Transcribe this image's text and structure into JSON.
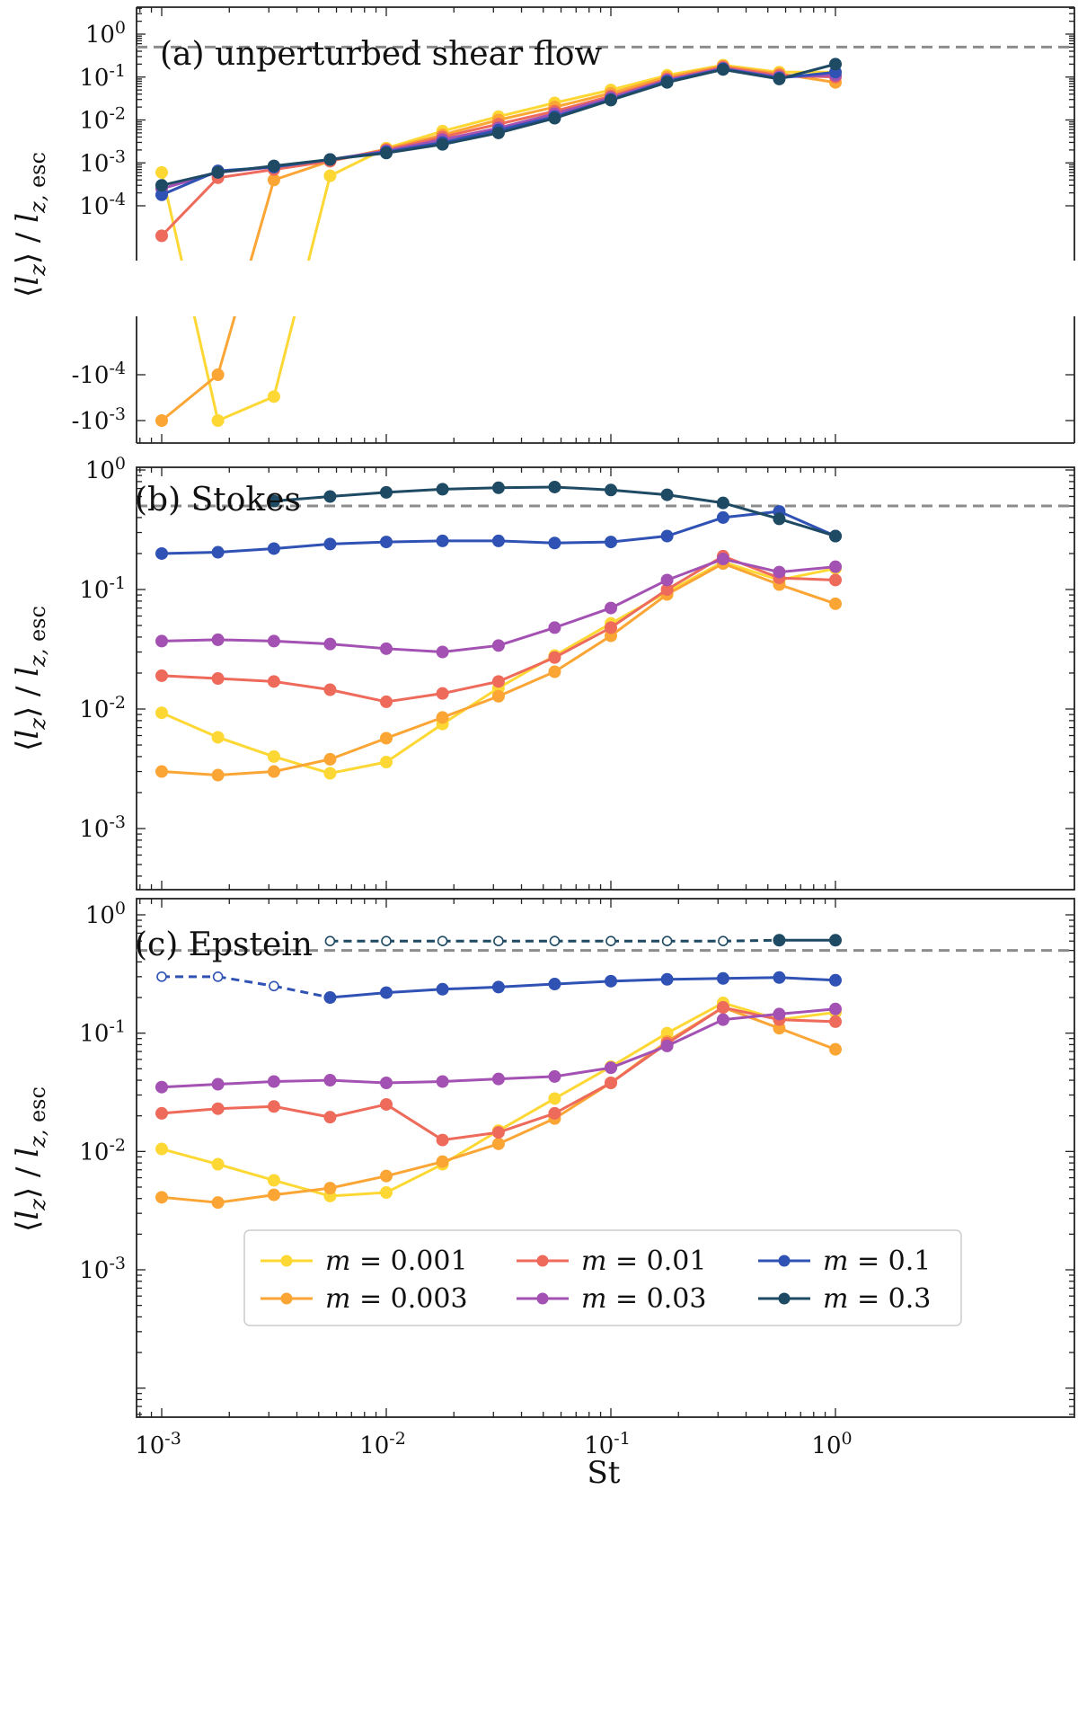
{
  "figure": {
    "xlabel": "St",
    "ylabel": "⟨lz⟩ / lz, esc",
    "legend_placement": "lower-center of panel (c)"
  },
  "series_styles": [
    {
      "key": "m0001",
      "name": "m = 0.001",
      "color": "#FDD835"
    },
    {
      "key": "m0003",
      "name": "m = 0.003",
      "color": "#FBA535"
    },
    {
      "key": "m001",
      "name": "m = 0.01",
      "color": "#EE6A5A"
    },
    {
      "key": "m003",
      "name": "m = 0.03",
      "color": "#A351B2"
    },
    {
      "key": "m01",
      "name": "m = 0.1",
      "color": "#2F52B4"
    },
    {
      "key": "m03",
      "name": "m = 0.3",
      "color": "#1E4A64"
    }
  ],
  "chart_data": [
    {
      "type": "line",
      "panel": "a",
      "title": "(a) unperturbed shear flow",
      "xscale": "log",
      "yscale": "symlog (broken axis)",
      "xlim": [
        0.001,
        1
      ],
      "x": [
        0.001,
        0.00178,
        0.00316,
        0.00562,
        0.01,
        0.0178,
        0.0316,
        0.0562,
        0.1,
        0.178,
        0.316,
        0.562,
        1
      ],
      "y_ticks_upper": [
        "10^0",
        "10^-1",
        "10^-2",
        "10^-3",
        "10^-4"
      ],
      "y_ticks_lower": [
        "-10^-4",
        "-10^-3"
      ],
      "reference_line": 0.5,
      "series": [
        {
          "key": "m0001",
          "values": [
            0.0006,
            -0.001,
            -0.0003,
            0.0005,
            0.0022,
            0.0055,
            0.012,
            0.025,
            0.05,
            0.11,
            0.19,
            0.13,
            0.13
          ]
        },
        {
          "key": "m0003",
          "values": [
            -0.001,
            -0.0001,
            0.0004,
            0.0011,
            0.0021,
            0.0045,
            0.01,
            0.02,
            0.042,
            0.1,
            0.18,
            0.12,
            0.075
          ]
        },
        {
          "key": "m001",
          "values": [
            2e-05,
            0.00045,
            0.0007,
            0.0011,
            0.002,
            0.004,
            0.008,
            0.016,
            0.036,
            0.09,
            0.17,
            0.11,
            0.1
          ]
        },
        {
          "key": "m003",
          "values": [
            0.00025,
            0.0006,
            0.0008,
            0.0012,
            0.0019,
            0.0035,
            0.0065,
            0.014,
            0.033,
            0.085,
            0.16,
            0.1,
            0.11
          ]
        },
        {
          "key": "m01",
          "values": [
            0.00018,
            0.00065,
            0.0008,
            0.0012,
            0.0018,
            0.003,
            0.0058,
            0.012,
            0.03,
            0.08,
            0.155,
            0.095,
            0.13
          ]
        },
        {
          "key": "m03",
          "values": [
            0.0003,
            0.0006,
            0.00085,
            0.0012,
            0.0017,
            0.0027,
            0.005,
            0.011,
            0.029,
            0.075,
            0.15,
            0.09,
            0.2
          ]
        }
      ]
    },
    {
      "type": "line",
      "panel": "b",
      "title": "(b) Stokes",
      "xscale": "log",
      "yscale": "log",
      "xlim": [
        0.001,
        1
      ],
      "x": [
        0.001,
        0.00178,
        0.00316,
        0.00562,
        0.01,
        0.0178,
        0.0316,
        0.0562,
        0.1,
        0.178,
        0.316,
        0.562,
        1
      ],
      "y_ticks": [
        "10^0",
        "10^-1",
        "10^-2",
        "10^-3"
      ],
      "reference_line": 0.5,
      "series": [
        {
          "key": "m0001",
          "values": [
            0.0093,
            0.0058,
            0.004,
            0.0029,
            0.0036,
            0.0075,
            0.015,
            0.028,
            0.052,
            0.095,
            0.17,
            0.12,
            0.15
          ]
        },
        {
          "key": "m0003",
          "values": [
            0.003,
            0.0028,
            0.003,
            0.0038,
            0.0057,
            0.0085,
            0.0128,
            0.0205,
            0.041,
            0.091,
            0.165,
            0.11,
            0.076
          ]
        },
        {
          "key": "m001",
          "values": [
            0.019,
            0.018,
            0.017,
            0.0145,
            0.0115,
            0.0135,
            0.017,
            0.027,
            0.048,
            0.1,
            0.19,
            0.125,
            0.12
          ]
        },
        {
          "key": "m003",
          "values": [
            0.037,
            0.038,
            0.037,
            0.035,
            0.032,
            0.03,
            0.034,
            0.048,
            0.07,
            0.12,
            0.18,
            0.14,
            0.155
          ]
        },
        {
          "key": "m01",
          "values": [
            0.2,
            0.205,
            0.22,
            0.24,
            0.25,
            0.255,
            0.255,
            0.245,
            0.25,
            0.28,
            0.4,
            0.45,
            0.28
          ]
        },
        {
          "key": "m03",
          "values": [
            null,
            null,
            0.55,
            0.6,
            0.65,
            0.69,
            0.71,
            0.72,
            0.68,
            0.62,
            0.53,
            0.39,
            0.28
          ]
        }
      ]
    },
    {
      "type": "line",
      "panel": "c",
      "title": "(c) Epstein",
      "xscale": "log",
      "yscale": "log",
      "xlim": [
        0.001,
        1
      ],
      "x": [
        0.001,
        0.00178,
        0.00316,
        0.00562,
        0.01,
        0.0178,
        0.0316,
        0.0562,
        0.1,
        0.178,
        0.316,
        0.562,
        1
      ],
      "y_ticks": [
        "10^0",
        "10^-1",
        "10^-2",
        "10^-3"
      ],
      "reference_line": 0.5,
      "series": [
        {
          "key": "m0001",
          "values": [
            0.0105,
            0.0078,
            0.0057,
            0.0042,
            0.0045,
            0.0078,
            0.015,
            0.028,
            0.052,
            0.1,
            0.18,
            0.13,
            0.15
          ]
        },
        {
          "key": "m0003",
          "values": [
            0.0041,
            0.0037,
            0.0043,
            0.0049,
            0.0062,
            0.0082,
            0.0116,
            0.019,
            0.038,
            0.085,
            0.165,
            0.11,
            0.073
          ]
        },
        {
          "key": "m001",
          "values": [
            0.021,
            0.023,
            0.024,
            0.0195,
            0.025,
            0.0125,
            0.0145,
            0.021,
            0.038,
            0.082,
            0.165,
            0.13,
            0.125
          ]
        },
        {
          "key": "m003",
          "values": [
            0.035,
            0.037,
            0.039,
            0.04,
            0.038,
            0.039,
            0.041,
            0.043,
            0.051,
            0.078,
            0.13,
            0.145,
            0.16
          ]
        },
        {
          "key": "m01",
          "values": [
            0.3,
            0.3,
            0.25,
            0.2,
            0.22,
            0.235,
            0.245,
            0.26,
            0.275,
            0.285,
            0.29,
            0.295,
            0.28
          ],
          "dashed_hollow_upto_index": 3
        },
        {
          "key": "m03",
          "values": [
            null,
            null,
            null,
            0.6,
            0.6,
            0.6,
            0.6,
            0.6,
            0.6,
            0.6,
            0.6,
            0.61,
            0.61
          ],
          "dashed_hollow_upto_index": 11
        }
      ]
    }
  ]
}
